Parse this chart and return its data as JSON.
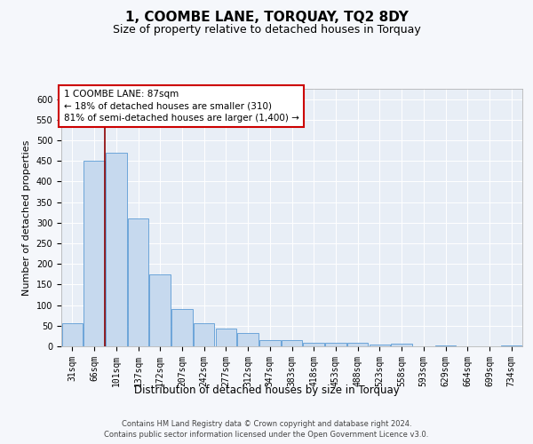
{
  "title": "1, COOMBE LANE, TORQUAY, TQ2 8DY",
  "subtitle": "Size of property relative to detached houses in Torquay",
  "xlabel": "Distribution of detached houses by size in Torquay",
  "ylabel": "Number of detached properties",
  "bar_color": "#c6d9ee",
  "bar_edge_color": "#5b9bd5",
  "background_color": "#e8eef6",
  "grid_color": "#ffffff",
  "categories": [
    "31sqm",
    "66sqm",
    "101sqm",
    "137sqm",
    "172sqm",
    "207sqm",
    "242sqm",
    "277sqm",
    "312sqm",
    "347sqm",
    "383sqm",
    "418sqm",
    "453sqm",
    "488sqm",
    "523sqm",
    "558sqm",
    "593sqm",
    "629sqm",
    "664sqm",
    "699sqm",
    "734sqm"
  ],
  "values": [
    55,
    450,
    470,
    310,
    175,
    90,
    57,
    43,
    33,
    15,
    15,
    8,
    8,
    8,
    5,
    7,
    0,
    3,
    0,
    0,
    2
  ],
  "vline_x": 1.5,
  "annotation_text": "1 COOMBE LANE: 87sqm\n← 18% of detached houses are smaller (310)\n81% of semi-detached houses are larger (1,400) →",
  "annotation_box_facecolor": "#ffffff",
  "annotation_box_edgecolor": "#cc0000",
  "ylim_max": 625,
  "yticks": [
    0,
    50,
    100,
    150,
    200,
    250,
    300,
    350,
    400,
    450,
    500,
    550,
    600
  ],
  "footer1": "Contains HM Land Registry data © Crown copyright and database right 2024.",
  "footer2": "Contains public sector information licensed under the Open Government Licence v3.0.",
  "vline_color": "#8b0000",
  "title_fontsize": 11,
  "subtitle_fontsize": 9,
  "xlabel_fontsize": 8.5,
  "ylabel_fontsize": 8,
  "tick_fontsize": 7,
  "annot_fontsize": 7.5,
  "footer_fontsize": 6
}
